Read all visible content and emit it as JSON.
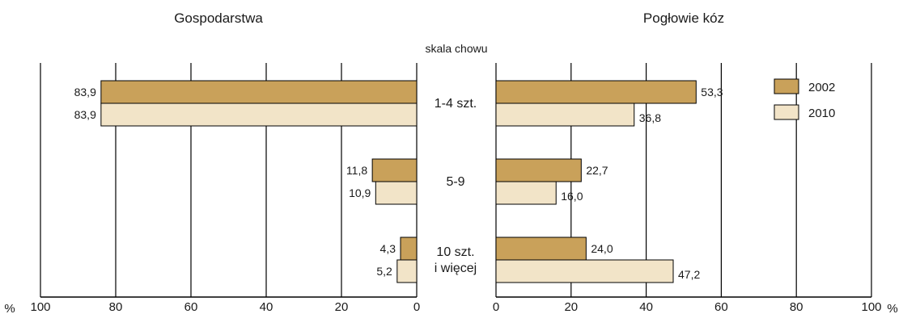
{
  "chart_data": {
    "type": "bar",
    "left_title": "Gospodarstwa",
    "right_title": "Pogłowie kóz",
    "center_label": "skala chowu",
    "categories": [
      {
        "lines": [
          "1-4 szt."
        ]
      },
      {
        "lines": [
          "5-9"
        ]
      },
      {
        "lines": [
          "10 szt.",
          "i więcej"
        ]
      }
    ],
    "left_series": [
      {
        "name": "2002",
        "values": [
          83.9,
          11.8,
          4.3
        ],
        "labels": [
          "83,9",
          "11,8",
          "4,3"
        ],
        "color": "#c9a15a"
      },
      {
        "name": "2010",
        "values": [
          83.9,
          10.9,
          5.2
        ],
        "labels": [
          "83,9",
          "10,9",
          "5,2"
        ],
        "color": "#f2e4c8"
      }
    ],
    "right_series": [
      {
        "name": "2002",
        "values": [
          53.3,
          22.7,
          24.0
        ],
        "labels": [
          "53,3",
          "22,7",
          "24,0"
        ],
        "color": "#c9a15a"
      },
      {
        "name": "2010",
        "values": [
          36.8,
          16.0,
          47.2
        ],
        "labels": [
          "36,8",
          "16,0",
          "47,2"
        ],
        "color": "#f2e4c8"
      }
    ],
    "left_ticks": [
      "100",
      "80",
      "60",
      "40",
      "20",
      "0"
    ],
    "right_ticks": [
      "0",
      "20",
      "40",
      "60",
      "80",
      "100"
    ],
    "xlim": [
      0,
      100
    ],
    "unit": "%",
    "legend": [
      {
        "name": "2002",
        "color": "#c9a15a"
      },
      {
        "name": "2010",
        "color": "#f2e4c8"
      }
    ],
    "legend_position": "top-right",
    "grid": true
  }
}
